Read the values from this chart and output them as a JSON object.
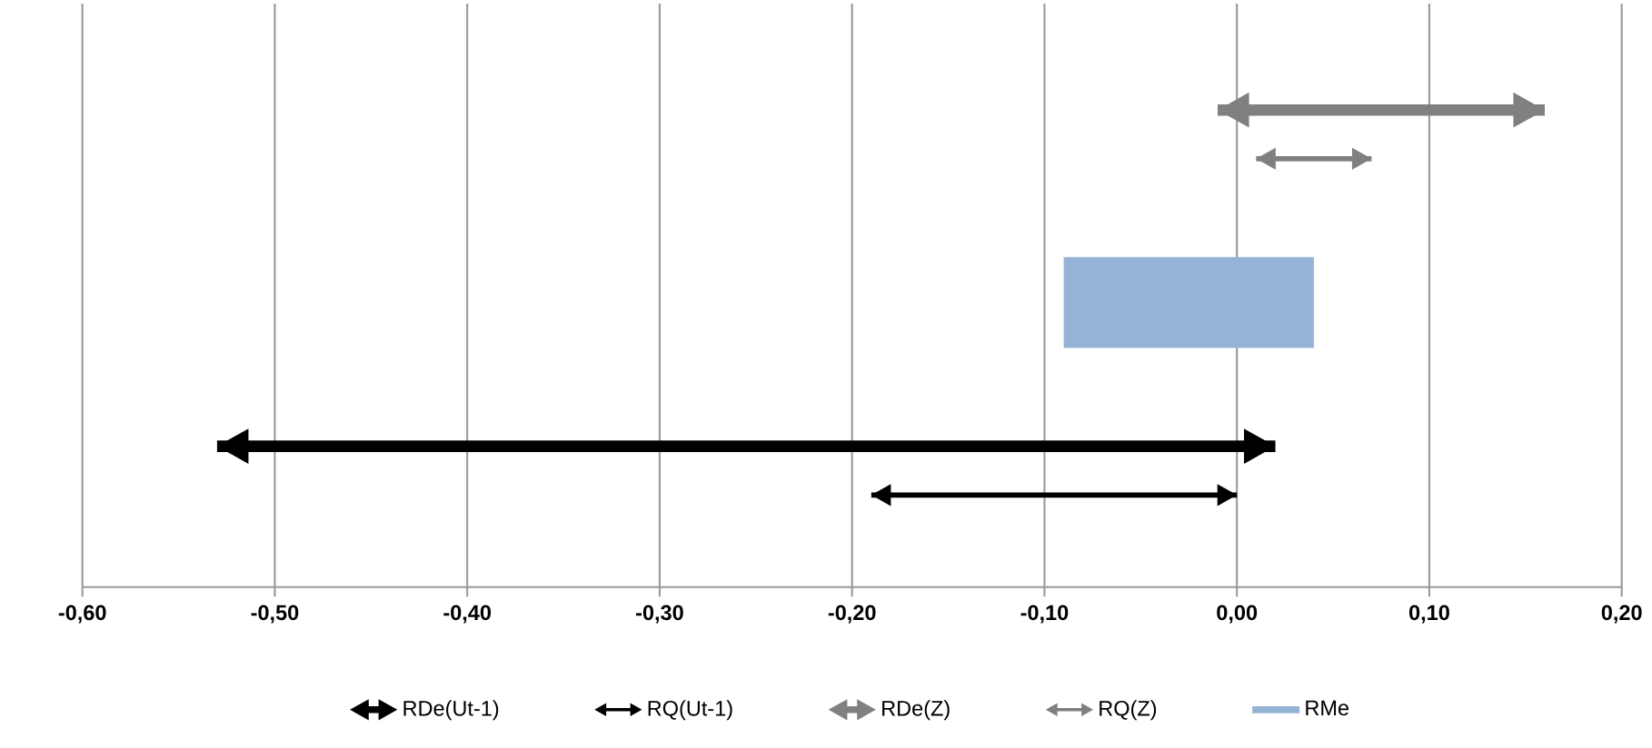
{
  "chart_data": {
    "type": "bar",
    "orientation": "horizontal",
    "categories": [
      null,
      null,
      null
    ],
    "series": [
      {
        "name": "RDe(Ut-1)",
        "color": "#000000",
        "marker": "triangle",
        "base": [
          null,
          null,
          -0.53
        ],
        "values": [
          null,
          null,
          0.55
        ]
      },
      {
        "name": "RQ(Ut-1)",
        "color": "#000000",
        "marker": "triangle",
        "base": [
          null,
          null,
          -0.19
        ],
        "values": [
          null,
          null,
          0.19
        ]
      },
      {
        "name": "RDe(Z)",
        "color": "#808080",
        "marker": "triangle",
        "base": [
          -0.01,
          null,
          null
        ],
        "values": [
          0.17,
          null,
          null
        ]
      },
      {
        "name": "RQ(Z)",
        "color": "#808080",
        "marker": "triangle",
        "base": [
          0.01,
          null,
          null
        ],
        "values": [
          0.06,
          null,
          null
        ]
      },
      {
        "name": "RMe",
        "color": "#95b3d7",
        "base": [
          null,
          -0.09,
          null
        ],
        "values": [
          null,
          0.13,
          null
        ]
      }
    ],
    "xlim": [
      -0.6,
      0.2
    ],
    "xticks": [
      {
        "value": -0.6,
        "label": "-0,60"
      },
      {
        "value": -0.5,
        "label": "-0,50"
      },
      {
        "value": -0.4,
        "label": "-0,40"
      },
      {
        "value": -0.3,
        "label": "-0,30"
      },
      {
        "value": -0.2,
        "label": "-0,20"
      },
      {
        "value": -0.1,
        "label": "-0,10"
      },
      {
        "value": 0.0,
        "label": "0,00"
      },
      {
        "value": 0.1,
        "label": "0,10"
      },
      {
        "value": 0.2,
        "label": "0,20"
      }
    ],
    "grid": "x",
    "legend": "bottom",
    "tick_labels": "x"
  }
}
